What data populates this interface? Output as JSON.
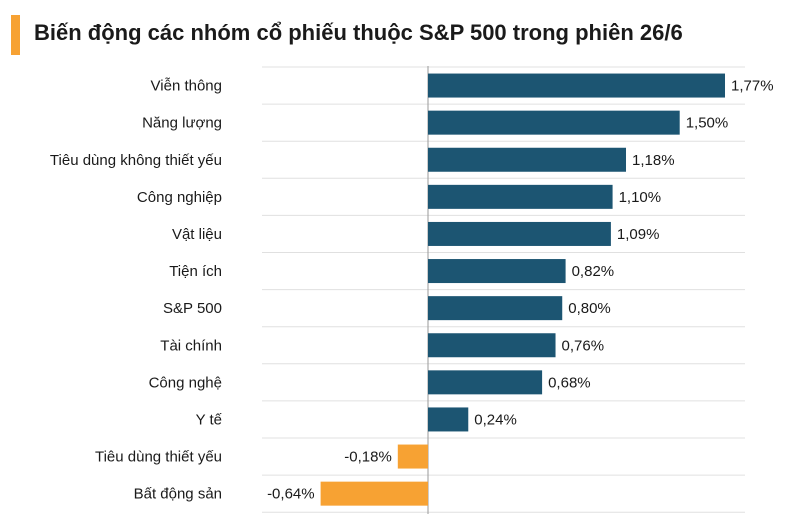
{
  "title": "Biến động các nhóm cổ phiếu thuộc S&P 500 trong phiên 26/6",
  "colors": {
    "accent": "#f7a233",
    "positive": "#1c5572",
    "negative": "#f7a233",
    "grid": "#e0e0e0",
    "axis": "#9a9a9a"
  },
  "chart_data": {
    "type": "bar",
    "orientation": "horizontal",
    "title": "Biến động các nhóm cổ phiếu thuộc S&P 500 trong phiên 26/6",
    "categories": [
      "Viễn thông",
      "Năng lượng",
      "Tiêu dùng không thiết yếu",
      "Công nghiệp",
      "Vật liệu",
      "Tiện ích",
      "S&P 500",
      "Tài chính",
      "Công nghệ",
      "Y tế",
      "Tiêu dùng thiết yếu",
      "Bất động sản"
    ],
    "values": [
      1.77,
      1.5,
      1.18,
      1.1,
      1.09,
      0.82,
      0.8,
      0.76,
      0.68,
      0.24,
      -0.18,
      -0.64
    ],
    "value_labels": [
      "1,77%",
      "1,50%",
      "1,18%",
      "1,10%",
      "1,09%",
      "0,82%",
      "0,80%",
      "0,76%",
      "0,68%",
      "0,24%",
      "-0,18%",
      "-0,64%"
    ],
    "unit": "%",
    "xlim": [
      -0.64,
      1.77
    ],
    "grid": true,
    "legend": "none"
  }
}
